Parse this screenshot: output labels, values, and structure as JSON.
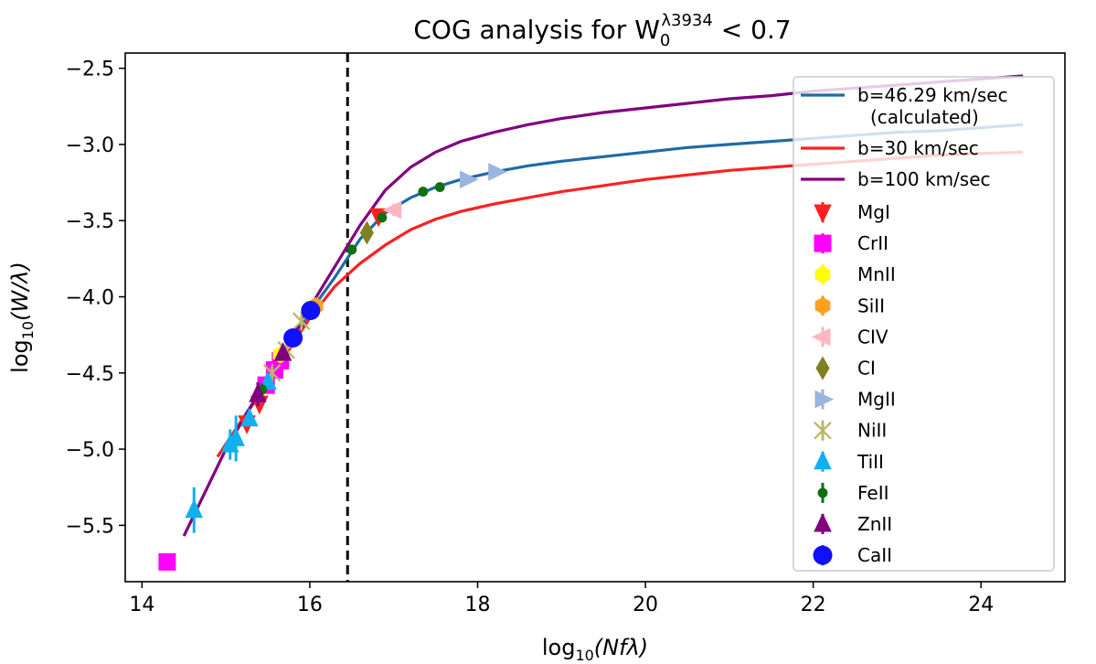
{
  "chart_data": {
    "type": "scatter",
    "title": {
      "prefix": "COG analysis for W",
      "sub": "0",
      "sup": "λ3934",
      "suffix": " < 0.7"
    },
    "xlabel": {
      "prefix": "log",
      "sub": "10",
      "suffix": "(Nfλ)"
    },
    "ylabel": {
      "prefix": "log",
      "sub": "10",
      "suffix": "(W/λ)"
    },
    "xlim": [
      13.8,
      25.0
    ],
    "ylim": [
      -5.87,
      -2.4
    ],
    "xticks": [
      14,
      16,
      18,
      20,
      22,
      24
    ],
    "xtick_labels": [
      "14",
      "16",
      "18",
      "20",
      "22",
      "24"
    ],
    "yticks": [
      -2.5,
      -3.0,
      -3.5,
      -4.0,
      -4.5,
      -5.0,
      -5.5
    ],
    "ytick_labels": [
      "−2.5",
      "−3.0",
      "−3.5",
      "−4.0",
      "−4.5",
      "−5.0",
      "−5.5"
    ],
    "vline": {
      "x": 16.45,
      "style": "dashed",
      "color": "#000000"
    },
    "curves": [
      {
        "name": "b=46.29 km/sec (calculated)",
        "label_lines": [
          "b=46.29 km/sec",
          "(calculated)"
        ],
        "color": "#1f6aa5",
        "x": [
          14.9,
          15.5,
          16.0,
          16.3,
          16.6,
          16.9,
          17.2,
          17.5,
          17.8,
          18.2,
          18.6,
          19.0,
          19.5,
          20.0,
          20.5,
          21.0,
          21.5,
          22.0,
          22.5,
          23.0,
          23.5,
          24.0,
          24.5
        ],
        "y": [
          -5.05,
          -4.55,
          -4.1,
          -3.87,
          -3.62,
          -3.45,
          -3.35,
          -3.28,
          -3.23,
          -3.18,
          -3.14,
          -3.11,
          -3.08,
          -3.05,
          -3.02,
          -3.0,
          -2.98,
          -2.96,
          -2.94,
          -2.92,
          -2.91,
          -2.89,
          -2.87
        ]
      },
      {
        "name": "b=30 km/sec",
        "label_lines": [
          "b=30 km/sec"
        ],
        "color": "#ff2020",
        "x": [
          14.9,
          15.5,
          16.0,
          16.3,
          16.6,
          16.9,
          17.2,
          17.5,
          17.8,
          18.2,
          18.6,
          19.0,
          19.5,
          20.0,
          20.5,
          21.0,
          21.5,
          22.0,
          22.5,
          23.0,
          23.5,
          24.0,
          24.5
        ],
        "y": [
          -5.05,
          -4.56,
          -4.14,
          -3.93,
          -3.78,
          -3.66,
          -3.56,
          -3.49,
          -3.44,
          -3.39,
          -3.35,
          -3.31,
          -3.27,
          -3.23,
          -3.2,
          -3.17,
          -3.15,
          -3.13,
          -3.11,
          -3.09,
          -3.07,
          -3.06,
          -3.05
        ]
      },
      {
        "name": "b=100 km/sec",
        "label_lines": [
          "b=100 km/sec"
        ],
        "color": "#800080",
        "x": [
          14.5,
          15.0,
          15.5,
          16.0,
          16.3,
          16.6,
          16.9,
          17.2,
          17.5,
          17.8,
          18.2,
          18.6,
          19.0,
          19.5,
          20.0,
          20.5,
          21.0,
          21.5,
          22.0,
          22.5,
          23.0,
          23.5,
          24.0,
          24.5
        ],
        "y": [
          -5.57,
          -5.0,
          -4.53,
          -4.07,
          -3.8,
          -3.53,
          -3.3,
          -3.15,
          -3.05,
          -2.98,
          -2.92,
          -2.87,
          -2.83,
          -2.79,
          -2.76,
          -2.73,
          -2.7,
          -2.68,
          -2.65,
          -2.63,
          -2.61,
          -2.59,
          -2.57,
          -2.55
        ]
      }
    ],
    "series": [
      {
        "name": "MgI",
        "marker": "triangle-down",
        "color": "#ff2020",
        "points": [
          {
            "x": 15.25,
            "y": -4.83,
            "err": 0.05
          },
          {
            "x": 15.4,
            "y": -4.7,
            "err": 0.05
          },
          {
            "x": 16.82,
            "y": -3.47,
            "err": 0.04
          }
        ]
      },
      {
        "name": "CrII",
        "marker": "square",
        "color": "#ff00ff",
        "points": [
          {
            "x": 14.3,
            "y": -5.74,
            "err": 0.0
          },
          {
            "x": 15.48,
            "y": -4.58,
            "err": 0.05
          },
          {
            "x": 15.58,
            "y": -4.48,
            "err": 0.05
          },
          {
            "x": 15.65,
            "y": -4.42,
            "err": 0.04
          }
        ]
      },
      {
        "name": "MnII",
        "marker": "hexagon",
        "color": "#ffff00",
        "points": [
          {
            "x": 15.65,
            "y": -4.38,
            "err": 0.04
          }
        ]
      },
      {
        "name": "SiII",
        "marker": "hexagon",
        "color": "#ffa020",
        "points": [
          {
            "x": 16.07,
            "y": -4.06,
            "err": 0.03
          }
        ]
      },
      {
        "name": "CIV",
        "marker": "triangle-left",
        "color": "#ffb6c1",
        "points": [
          {
            "x": 17.0,
            "y": -3.43,
            "err": 0.04
          }
        ]
      },
      {
        "name": "CI",
        "marker": "diamond",
        "color": "#808020",
        "points": [
          {
            "x": 16.68,
            "y": -3.58,
            "err": 0.05
          }
        ]
      },
      {
        "name": "MgII",
        "marker": "triangle-right",
        "color": "#9ab5e0",
        "points": [
          {
            "x": 17.88,
            "y": -3.23,
            "err": 0.0
          },
          {
            "x": 18.22,
            "y": -3.18,
            "err": 0.0
          }
        ]
      },
      {
        "name": "NiII",
        "marker": "x",
        "color": "#bdb76b",
        "points": [
          {
            "x": 15.55,
            "y": -4.5,
            "err": 0.04
          },
          {
            "x": 15.72,
            "y": -4.35,
            "err": 0.04
          },
          {
            "x": 15.9,
            "y": -4.16,
            "err": 0.03
          }
        ]
      },
      {
        "name": "TiII",
        "marker": "triangle-up",
        "color": "#10b0f0",
        "points": [
          {
            "x": 14.62,
            "y": -5.4,
            "err": 0.15
          },
          {
            "x": 15.05,
            "y": -4.97,
            "err": 0.1
          },
          {
            "x": 15.12,
            "y": -4.93,
            "err": 0.15
          },
          {
            "x": 15.28,
            "y": -4.8,
            "err": 0.05
          },
          {
            "x": 15.5,
            "y": -4.56,
            "err": 0.03
          }
        ]
      },
      {
        "name": "FeII",
        "marker": "circle-small",
        "color": "#107010",
        "points": [
          {
            "x": 15.43,
            "y": -4.61,
            "err": 0.04
          },
          {
            "x": 16.5,
            "y": -3.69,
            "err": 0.02
          },
          {
            "x": 16.86,
            "y": -3.48,
            "err": 0.02
          },
          {
            "x": 17.35,
            "y": -3.31,
            "err": 0.02
          },
          {
            "x": 17.55,
            "y": -3.28,
            "err": 0.02
          }
        ]
      },
      {
        "name": "ZnII",
        "marker": "triangle-up",
        "color": "#800080",
        "points": [
          {
            "x": 15.38,
            "y": -4.64,
            "err": 0.08
          },
          {
            "x": 15.68,
            "y": -4.37,
            "err": 0.05
          }
        ]
      },
      {
        "name": "CaII",
        "marker": "circle",
        "color": "#1010ff",
        "points": [
          {
            "x": 15.8,
            "y": -4.27,
            "err": 0.03
          },
          {
            "x": 16.01,
            "y": -4.09,
            "err": 0.03
          }
        ]
      }
    ]
  }
}
